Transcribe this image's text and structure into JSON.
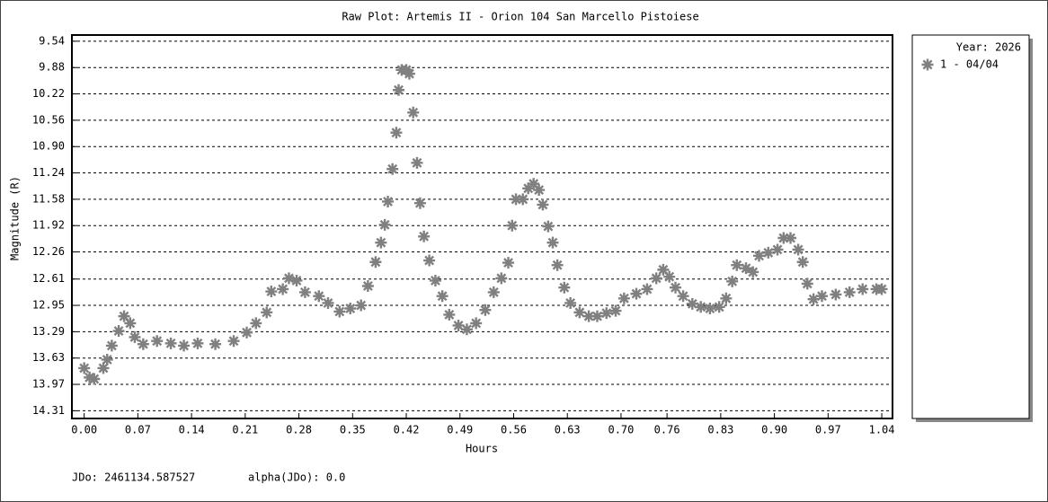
{
  "chart_data": {
    "type": "scatter",
    "title": "Raw Plot: Artemis II - Orion 104 San Marcello Pistoiese",
    "x_label": "Hours",
    "y_label": "Magnitude (R)",
    "legend_title": "Year: 2026",
    "legend_position": "right",
    "footer": [
      "JDo: 2461134.587527",
      "alpha(JDo): 0.0"
    ],
    "y_inverted": true,
    "grid": true,
    "xlim": [
      -0.016,
      1.054
    ],
    "ylim": [
      9.46,
      14.41
    ],
    "xticks": [
      {
        "value": 0,
        "label": "0.00"
      },
      0.07,
      0.14,
      0.21,
      0.28,
      0.35,
      0.42,
      0.49,
      0.56,
      0.63,
      {
        "value": 0.7,
        "label": "0.70"
      },
      0.76,
      0.83,
      {
        "value": 0.9,
        "label": "0.90"
      },
      0.97,
      1.04
    ],
    "yticks": [
      9.54,
      9.88,
      10.22,
      10.56,
      {
        "value": 10.9,
        "label": "10.90"
      },
      11.24,
      11.58,
      11.92,
      12.26,
      12.61,
      12.95,
      13.29,
      13.63,
      13.97,
      14.31
    ],
    "series": [
      {
        "name": "1 - 04/04",
        "color": "#808080",
        "x": [
          0.0,
          0.007,
          0.013,
          0.025,
          0.03,
          0.036,
          0.045,
          0.052,
          0.06,
          0.066,
          0.077,
          0.095,
          0.113,
          0.13,
          0.148,
          0.171,
          0.195,
          0.212,
          0.224,
          0.238,
          0.244,
          0.259,
          0.267,
          0.277,
          0.288,
          0.306,
          0.318,
          0.333,
          0.347,
          0.361,
          0.37,
          0.38,
          0.387,
          0.392,
          0.396,
          0.402,
          0.407,
          0.41,
          0.414,
          0.42,
          0.424,
          0.429,
          0.434,
          0.438,
          0.443,
          0.45,
          0.458,
          0.467,
          0.476,
          0.488,
          0.499,
          0.511,
          0.523,
          0.534,
          0.544,
          0.553,
          0.558,
          0.563,
          0.572,
          0.579,
          0.586,
          0.593,
          0.598,
          0.605,
          0.611,
          0.617,
          0.626,
          0.634,
          0.646,
          0.658,
          0.669,
          0.681,
          0.693,
          0.704,
          0.72,
          0.734,
          0.746,
          0.755,
          0.763,
          0.771,
          0.781,
          0.793,
          0.804,
          0.816,
          0.828,
          0.837,
          0.845,
          0.851,
          0.863,
          0.872,
          0.88,
          0.892,
          0.904,
          0.912,
          0.921,
          0.931,
          0.937,
          0.943,
          0.951,
          0.962,
          0.98,
          0.998,
          1.015,
          1.033,
          1.04
        ],
        "values": [
          13.76,
          13.88,
          13.9,
          13.76,
          13.65,
          13.47,
          13.28,
          13.09,
          13.18,
          13.36,
          13.45,
          13.41,
          13.44,
          13.47,
          13.44,
          13.45,
          13.41,
          13.3,
          13.18,
          13.04,
          12.77,
          12.74,
          12.6,
          12.63,
          12.78,
          12.83,
          12.92,
          13.03,
          12.99,
          12.95,
          12.7,
          12.39,
          12.14,
          11.91,
          11.61,
          11.19,
          10.72,
          10.17,
          9.91,
          9.91,
          9.96,
          10.46,
          11.11,
          11.63,
          12.06,
          12.37,
          12.63,
          12.83,
          13.07,
          13.21,
          13.26,
          13.18,
          13.01,
          12.78,
          12.6,
          12.4,
          11.92,
          11.58,
          11.58,
          11.44,
          11.38,
          11.46,
          11.65,
          11.93,
          12.14,
          12.43,
          12.72,
          12.92,
          13.04,
          13.09,
          13.09,
          13.05,
          13.02,
          12.86,
          12.8,
          12.74,
          12.6,
          12.49,
          12.58,
          12.72,
          12.83,
          12.93,
          12.97,
          12.99,
          12.97,
          12.86,
          12.64,
          12.43,
          12.47,
          12.52,
          12.31,
          12.27,
          12.23,
          12.08,
          12.08,
          12.23,
          12.39,
          12.67,
          12.87,
          12.83,
          12.81,
          12.78,
          12.74,
          12.74,
          12.74
        ]
      }
    ]
  }
}
